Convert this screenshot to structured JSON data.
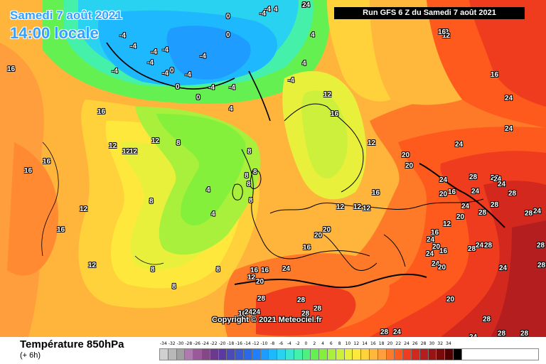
{
  "header": {
    "date_line": "Samedi 7 août 2021",
    "time_line": "14:00 locale",
    "run_info": "Run GFS 6 Z du Samedi 7 août 2021"
  },
  "map": {
    "copyright": "Copyright © 2021 Meteociel.fr",
    "labels": [
      "4",
      "-4",
      "4",
      "-4",
      "0",
      "-4",
      "-4",
      "-4",
      "-4",
      "-4",
      "-4",
      "-4",
      "-4",
      "0",
      "-4",
      "-4",
      "-4",
      "4",
      "0",
      "4",
      "0",
      "-4",
      "4",
      "0",
      "16",
      "16",
      "12",
      "12",
      "12",
      "12",
      "16",
      "16",
      "12",
      "12",
      "16",
      "8",
      "4",
      "4",
      "8",
      "8",
      "8",
      "8",
      "8",
      "8",
      "8",
      "8",
      "8",
      "12",
      "12",
      "12",
      "16",
      "16",
      "12",
      "12",
      "12",
      "12",
      "16",
      "16",
      "20",
      "20",
      "20",
      "24",
      "24",
      "24",
      "24",
      "24",
      "28",
      "28",
      "24",
      "24",
      "28",
      "24",
      "28",
      "28",
      "20",
      "20",
      "20",
      "16",
      "16",
      "16",
      "12",
      "20",
      "24",
      "16",
      "28",
      "28",
      "28",
      "28",
      "24",
      "24",
      "28",
      "24",
      "24",
      "16",
      "12",
      "16",
      "20",
      "16",
      "24",
      "28",
      "24",
      "28",
      "24",
      "28",
      "24",
      "28",
      "28",
      "28",
      "28",
      "28",
      "24",
      "24",
      "20",
      "20",
      "24"
    ]
  },
  "legend": {
    "variable": "Température 850hPa",
    "subtitle": "(+ 6h)",
    "ticks": [
      "-34",
      "-32",
      "-30",
      "-28",
      "-26",
      "-24",
      "-22",
      "-20",
      "-18",
      "-16",
      "-14",
      "-12",
      "-10",
      "-8",
      "-6",
      "-4",
      "-2",
      "0",
      "2",
      "4",
      "6",
      "8",
      "10",
      "12",
      "14",
      "16",
      "18",
      "20",
      "22",
      "24",
      "26",
      "28",
      "30",
      "32",
      "34"
    ],
    "colors": [
      "#d0d0d0",
      "#b8b8b8",
      "#a0a0a0",
      "#b07ab0",
      "#9a5a9a",
      "#844884",
      "#6c3a8c",
      "#5a3aa0",
      "#4a4ab8",
      "#3a5ad0",
      "#2a6ae8",
      "#1e80ff",
      "#1e9cff",
      "#1eb8ff",
      "#28d2f0",
      "#3ae6d2",
      "#44f0aa",
      "#50f080",
      "#64f050",
      "#84f03c",
      "#a8f03c",
      "#ccf03c",
      "#e8f03c",
      "#ffe83c",
      "#ffd23c",
      "#ffb83c",
      "#ff9e3c",
      "#ff7a28",
      "#ff5a1e",
      "#f03c1e",
      "#d2281e",
      "#b41e1e",
      "#961414",
      "#780a0a",
      "#500000",
      "#000000"
    ]
  }
}
